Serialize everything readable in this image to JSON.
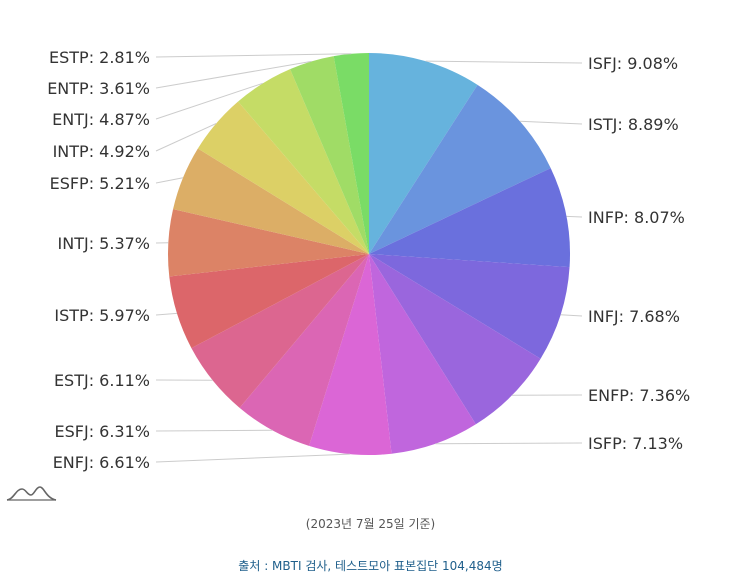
{
  "chart_data": {
    "type": "pie",
    "title": "",
    "slices": [
      {
        "label": "ISFJ",
        "value": 9.08,
        "color": "#66b3dd"
      },
      {
        "label": "ISTJ",
        "value": 8.89,
        "color": "#6a94de"
      },
      {
        "label": "INFP",
        "value": 8.07,
        "color": "#6a70dd"
      },
      {
        "label": "INFJ",
        "value": 7.68,
        "color": "#7d68dd"
      },
      {
        "label": "ENFP",
        "value": 7.36,
        "color": "#9a66dd"
      },
      {
        "label": "ISFP",
        "value": 7.13,
        "color": "#c066dd"
      },
      {
        "label": "ENFJ",
        "value": 6.61,
        "color": "#db66d6"
      },
      {
        "label": "ESFJ",
        "value": 6.31,
        "color": "#db66b4"
      },
      {
        "label": "ESTJ",
        "value": 6.11,
        "color": "#dc6690"
      },
      {
        "label": "ISTP",
        "value": 5.97,
        "color": "#dc666a"
      },
      {
        "label": "INTJ",
        "value": 5.37,
        "color": "#dc8366"
      },
      {
        "label": "ESFP",
        "value": 5.21,
        "color": "#dcae66"
      },
      {
        "label": "INTP",
        "value": 4.92,
        "color": "#dcd066"
      },
      {
        "label": "ENTJ",
        "value": 4.87,
        "color": "#c5dc66"
      },
      {
        "label": "ENTP",
        "value": 3.61,
        "color": "#a0dc66"
      },
      {
        "label": "ESTP",
        "value": 2.81,
        "color": "#7adc66"
      }
    ],
    "legend": "none",
    "labels": "outside with leader lines"
  },
  "labels_text": [
    "ISFJ: 9.08%",
    "ISTJ: 8.89%",
    "INFP: 8.07%",
    "INFJ: 7.68%",
    "ENFP: 7.36%",
    "ISFP: 7.13%",
    "ENFJ: 6.61%",
    "ESFJ: 6.31%",
    "ESTJ: 6.11%",
    "ISTP: 5.97%",
    "INTJ: 5.37%",
    "ESFP: 5.21%",
    "INTP: 4.92%",
    "ENTJ: 4.87%",
    "ENTP: 3.61%",
    "ESTP: 2.81%"
  ],
  "footer": {
    "date_note": "(2023년 7월 25일 기준)",
    "source": "출처 : MBTI 검사, 테스트모아 표본집단 104,484명"
  },
  "logo": {
    "icon": "mountain-chart-icon",
    "color": "#666666"
  }
}
